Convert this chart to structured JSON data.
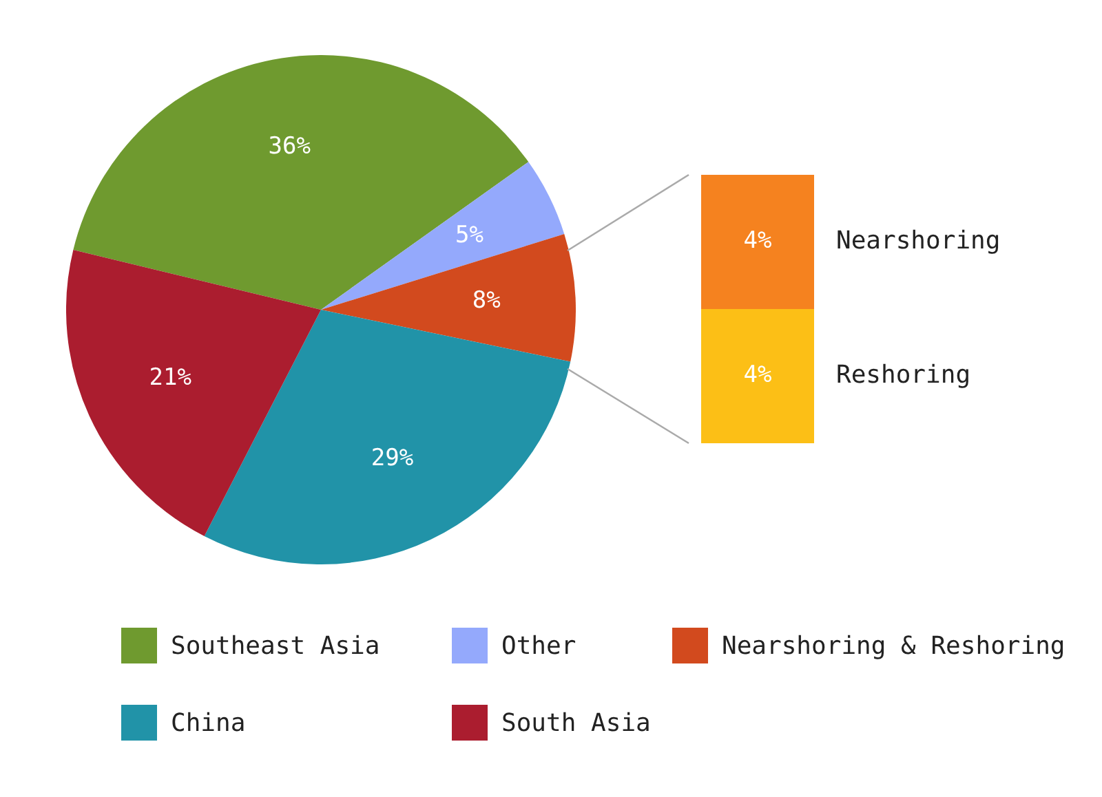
{
  "chart_data": [
    {
      "type": "pie",
      "categories": [
        "Southeast Asia",
        "Other",
        "Nearshoring & Reshoring",
        "China",
        "South Asia"
      ],
      "values": [
        36,
        5,
        8,
        29,
        21
      ],
      "colors": [
        "#6f9a2f",
        "#94a9fc",
        "#d24a1e",
        "#2193a8",
        "#ab1d2f"
      ],
      "value_labels": [
        "36%",
        "5%",
        "8%",
        "29%",
        "21%"
      ],
      "legend": "bottom"
    },
    {
      "type": "bar",
      "stacked": true,
      "categories": [
        null
      ],
      "series": [
        {
          "name": "Reshoring",
          "color": "#fcbf16",
          "values": [
            4
          ],
          "value_labels": [
            "4%"
          ]
        },
        {
          "name": "Nearshoring",
          "color": "#f5821f",
          "values": [
            4
          ],
          "value_labels": [
            "4%"
          ]
        }
      ]
    }
  ]
}
